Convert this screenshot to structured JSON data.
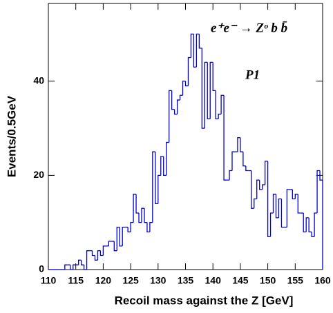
{
  "chart_data": {
    "type": "histogram",
    "x_label": "Recoil mass against the Z  [GeV]",
    "y_label": "Events/0.5GeV",
    "annotations": [
      "e⁺e⁻ → Zᵒ b b̄",
      "P1"
    ],
    "color": "#0000cc",
    "bins": [
      110,
      110.5,
      111,
      111.5,
      112,
      112.5,
      113,
      113.5,
      114,
      114.5,
      115,
      115.5,
      116,
      116.5,
      117,
      117.5,
      118,
      118.5,
      119,
      119.5,
      120,
      120.5,
      121,
      121.5,
      122,
      122.5,
      123,
      123.5,
      124,
      124.5,
      125,
      125.5,
      126,
      126.5,
      127,
      127.5,
      128,
      128.5,
      129,
      129.5,
      130,
      130.5,
      131,
      131.5,
      132,
      132.5,
      133,
      133.5,
      134,
      134.5,
      135,
      135.5,
      136,
      136.5,
      137,
      137.5,
      138,
      138.5,
      139,
      139.5,
      140,
      140.5,
      141,
      141.5,
      142,
      142.5,
      143,
      143.5,
      144,
      144.5,
      145,
      145.5,
      146,
      146.5,
      147,
      147.5,
      148,
      148.5,
      149,
      149.5,
      150,
      150.5,
      151,
      151.5,
      152,
      152.5,
      153,
      153.5,
      154,
      154.5,
      155,
      155.5,
      156,
      156.5,
      157,
      157.5,
      158,
      158.5,
      159,
      159.5,
      160
    ],
    "values": [
      0,
      0,
      0,
      0,
      0,
      0,
      1,
      1,
      0,
      1,
      1,
      2,
      1,
      0,
      4,
      4,
      3,
      2,
      4,
      3,
      5,
      5,
      6,
      6,
      4,
      9,
      5,
      9,
      9,
      8,
      10,
      16,
      12,
      10,
      13,
      10,
      8,
      10,
      25,
      14,
      20,
      24,
      20,
      27,
      38,
      34,
      33,
      36,
      37,
      40,
      39,
      45,
      50,
      43,
      50,
      47,
      30,
      44,
      32,
      44,
      38,
      32,
      33,
      37,
      19,
      19,
      21,
      25,
      25,
      28,
      25,
      22,
      21,
      21,
      13,
      15,
      19,
      17,
      18,
      23,
      7,
      12,
      16,
      11,
      15,
      9,
      9,
      17,
      17,
      15,
      16,
      12,
      12,
      8,
      11,
      8,
      7,
      12,
      21,
      19
    ],
    "xlim": [
      110,
      160
    ],
    "ylim": [
      0,
      56.5
    ],
    "xticks": [
      110,
      115,
      120,
      125,
      130,
      135,
      140,
      145,
      150,
      155,
      160
    ],
    "yticks": [
      0,
      20,
      40
    ]
  }
}
